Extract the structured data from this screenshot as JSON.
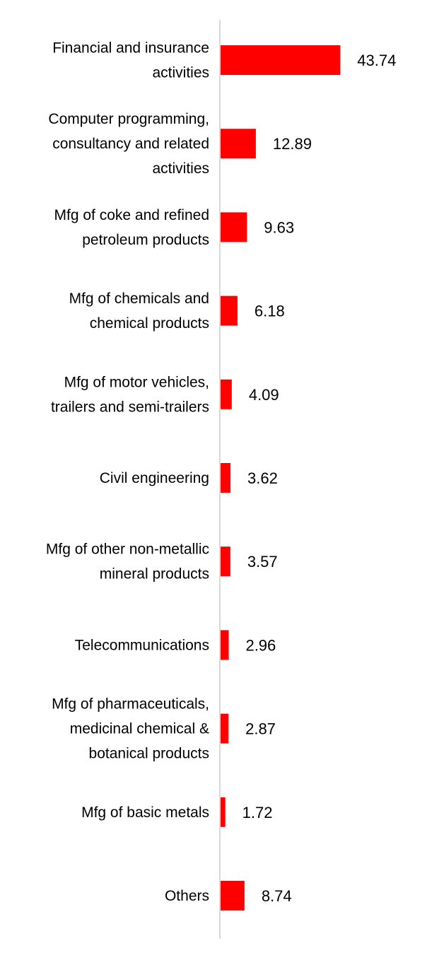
{
  "chart_data": {
    "type": "bar",
    "orientation": "horizontal",
    "title": "",
    "xlabel": "",
    "ylabel": "",
    "grid": false,
    "legend": "none",
    "bar_color": "#ff0000",
    "axis_color": "#d9d9d9",
    "xlim": [
      0,
      50
    ],
    "categories": [
      [
        "Financial and insurance",
        "activities"
      ],
      [
        "Computer programming,",
        "consultancy and related",
        "activities"
      ],
      [
        "Mfg of coke and refined",
        "petroleum products"
      ],
      [
        "Mfg of chemicals and",
        "chemical products"
      ],
      [
        "Mfg of motor vehicles,",
        "trailers and semi-trailers"
      ],
      [
        "Civil engineering"
      ],
      [
        "Mfg of other non-metallic",
        "mineral products"
      ],
      [
        "Telecommunications"
      ],
      [
        "Mfg of pharmaceuticals,",
        "medicinal chemical &",
        "botanical products"
      ],
      [
        "Mfg of basic metals"
      ],
      [
        "Others"
      ]
    ],
    "values": [
      43.74,
      12.89,
      9.63,
      6.18,
      4.09,
      3.62,
      3.57,
      2.96,
      2.87,
      1.72,
      8.74
    ],
    "value_labels": [
      "43.74",
      "12.89",
      "9.63",
      "6.18",
      "4.09",
      "3.62",
      "3.57",
      "2.96",
      "2.87",
      "1.72",
      "8.74"
    ]
  }
}
